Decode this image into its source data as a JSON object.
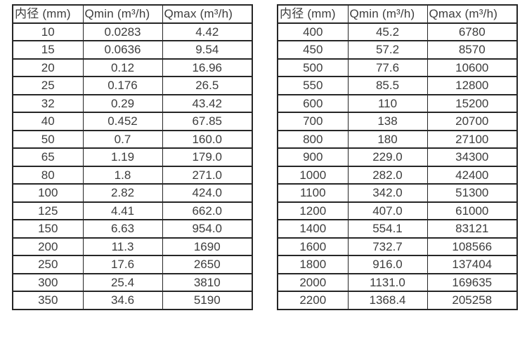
{
  "colors": {
    "background": "#ffffff",
    "border": "#262626",
    "text": "#3d3d3d"
  },
  "tables": {
    "left": {
      "headers": [
        "内径 (mm)",
        "Qmin (m³/h)",
        "Qmax (m³/h)"
      ],
      "rows": [
        [
          "10",
          "0.0283",
          "4.42"
        ],
        [
          "15",
          "0.0636",
          "9.54"
        ],
        [
          "20",
          "0.12",
          "16.96"
        ],
        [
          "25",
          "0.176",
          "26.5"
        ],
        [
          "32",
          "0.29",
          "43.42"
        ],
        [
          "40",
          "0.452",
          "67.85"
        ],
        [
          "50",
          "0.7",
          "160.0"
        ],
        [
          "65",
          "1.19",
          "179.0"
        ],
        [
          "80",
          "1.8",
          "271.0"
        ],
        [
          "100",
          "2.82",
          "424.0"
        ],
        [
          "125",
          "4.41",
          "662.0"
        ],
        [
          "150",
          "6.63",
          "954.0"
        ],
        [
          "200",
          "11.3",
          "1690"
        ],
        [
          "250",
          "17.6",
          "2650"
        ],
        [
          "300",
          "25.4",
          "3810"
        ],
        [
          "350",
          "34.6",
          "5190"
        ]
      ]
    },
    "right": {
      "headers": [
        "内径 (mm)",
        "Qmin (m³/h)",
        "Qmax (m³/h)"
      ],
      "rows": [
        [
          "400",
          "45.2",
          "6780"
        ],
        [
          "450",
          "57.2",
          "8570"
        ],
        [
          "500",
          "77.6",
          "10600"
        ],
        [
          "550",
          "85.5",
          "12800"
        ],
        [
          "600",
          "110",
          "15200"
        ],
        [
          "700",
          "138",
          "20700"
        ],
        [
          "800",
          "180",
          "27100"
        ],
        [
          "900",
          "229.0",
          "34300"
        ],
        [
          "1000",
          "282.0",
          "42400"
        ],
        [
          "1100",
          "342.0",
          "51300"
        ],
        [
          "1200",
          "407.0",
          "61000"
        ],
        [
          "1400",
          "554.1",
          "83121"
        ],
        [
          "1600",
          "732.7",
          "108566"
        ],
        [
          "1800",
          "916.0",
          "137404"
        ],
        [
          "2000",
          "1131.0",
          "169635"
        ],
        [
          "2200",
          "1368.4",
          "205258"
        ]
      ]
    }
  }
}
